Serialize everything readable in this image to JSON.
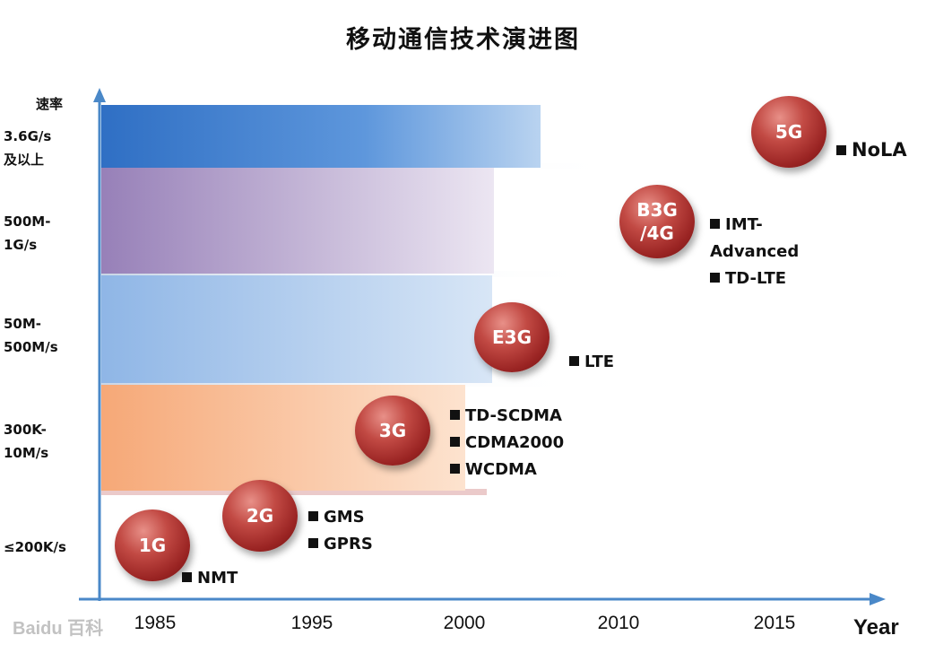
{
  "title": "移动通信技术演进图",
  "y_axis": {
    "label": "速率",
    "tiers": [
      "3.6G/s\n及以上",
      "500M-\n1G/s",
      "50M-\n500M/s",
      "300K-\n10M/s",
      "≤200K/s"
    ]
  },
  "x_axis": {
    "label": "Year",
    "ticks": [
      "1985",
      "1995",
      "2000",
      "2010",
      "2015"
    ]
  },
  "generations": [
    {
      "name": "1G",
      "techs": [
        "NMT"
      ]
    },
    {
      "name": "2G",
      "techs": [
        "GMS",
        "GPRS"
      ]
    },
    {
      "name": "3G",
      "techs": [
        "TD-SCDMA",
        "CDMA2000",
        "WCDMA"
      ]
    },
    {
      "name": "E3G",
      "techs": [
        "LTE"
      ]
    },
    {
      "name": "B3G\n/4G",
      "techs": [
        "IMT-",
        "Advanced",
        "TD-LTE"
      ]
    },
    {
      "name": "5G",
      "techs": [
        "NoLA"
      ]
    }
  ],
  "watermark": "Baidu 百科",
  "colors": {
    "band_3_6g": "#3a78c8",
    "band_500m": "#a48cc0",
    "band_50m": "#a9c6ea",
    "band_300k": "#f8b98a",
    "axis": "#4a88c8",
    "ball": "#9a2423"
  }
}
